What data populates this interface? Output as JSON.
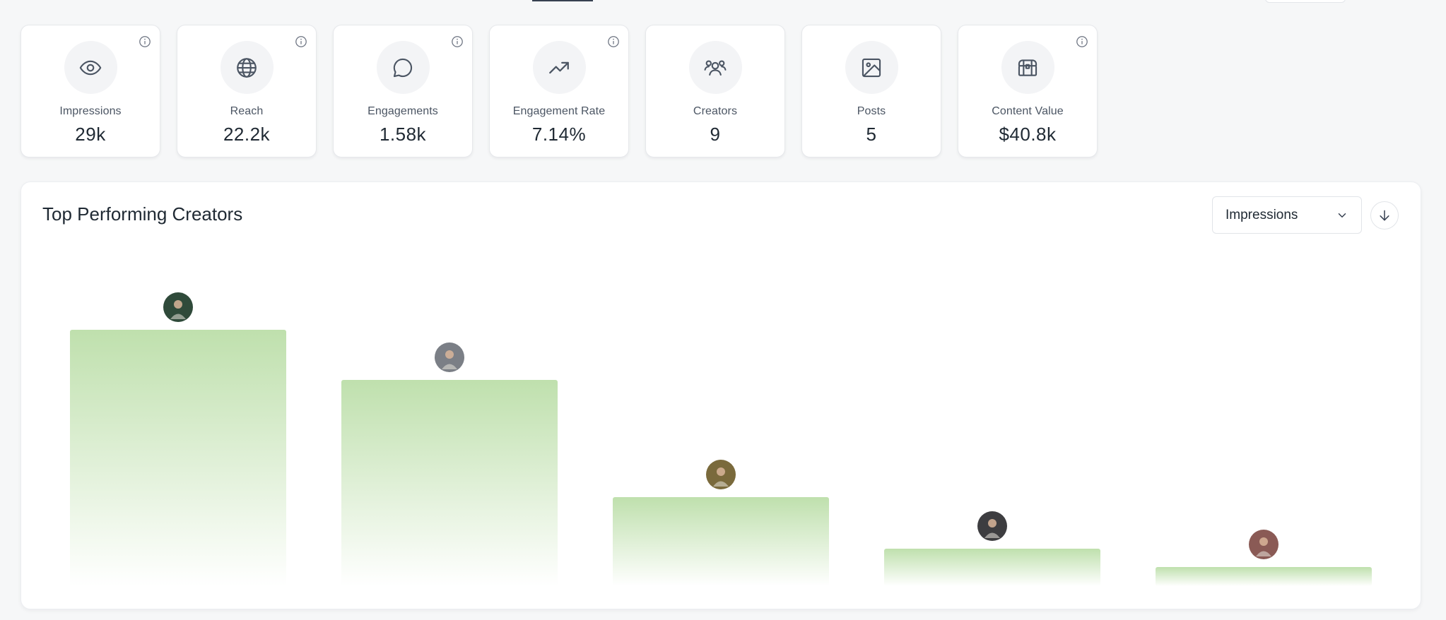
{
  "kpis": [
    {
      "label": "Impressions",
      "value": "29k",
      "icon": "eye-icon",
      "info": true
    },
    {
      "label": "Reach",
      "value": "22.2k",
      "icon": "globe-icon",
      "info": true
    },
    {
      "label": "Engagements",
      "value": "1.58k",
      "icon": "message-circle-icon",
      "info": true
    },
    {
      "label": "Engagement Rate",
      "value": "7.14%",
      "icon": "trending-up-icon",
      "info": true
    },
    {
      "label": "Creators",
      "value": "9",
      "icon": "users-icon",
      "info": false
    },
    {
      "label": "Posts",
      "value": "5",
      "icon": "image-icon",
      "info": false
    },
    {
      "label": "Content Value",
      "value": "$40.8k",
      "icon": "treasure-chest-icon",
      "info": true
    }
  ],
  "panel": {
    "title": "Top Performing Creators",
    "metric_select": "Impressions"
  },
  "colors": {
    "bar_top": "#bfe0ad",
    "bar_bottom": "#ffffff",
    "avatars": [
      "#2f4a3a",
      "#7b7f86",
      "#7a6a3c",
      "#3d3d40",
      "#8a5a55"
    ]
  },
  "chart_data": {
    "type": "bar",
    "categories": [
      "",
      "",
      "",
      "",
      ""
    ],
    "values": [
      363,
      292,
      126,
      53,
      27
    ],
    "title": "",
    "xlabel": "",
    "ylabel": "",
    "ylim": [
      0,
      400
    ]
  }
}
